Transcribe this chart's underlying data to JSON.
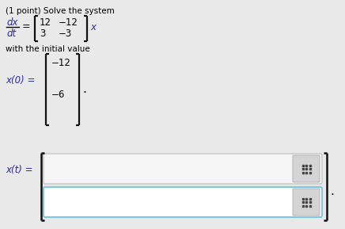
{
  "background_color": "#e9e9e9",
  "font_color": "#000000",
  "italic_color": "#2a2aaa",
  "title_text": "(1 point) Solve the system",
  "iv_row1": "−12",
  "iv_row2": "−6",
  "grid_icon_color": "#444444",
  "box1_face": "#f5f5f5",
  "box1_edge": "#bbbbbb",
  "box2_face": "#ffffff",
  "box2_edge": "#7ec8e3",
  "grid_face": "#d4d4d4",
  "grid_edge": "#aaaaaa"
}
